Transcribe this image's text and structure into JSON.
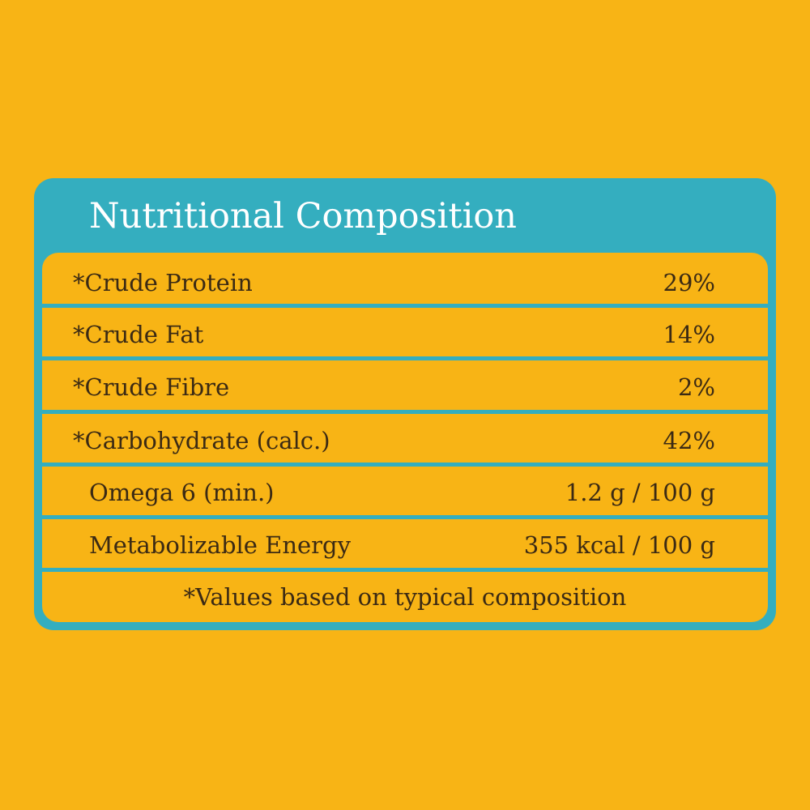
{
  "table": {
    "title": "Nutritional Composition",
    "rows": [
      [
        "*Crude Protein",
        "29%"
      ],
      [
        "*Crude Fat",
        "14%"
      ],
      [
        "*Crude Fibre",
        "2%"
      ],
      [
        "*Carbohydrate (calc.)",
        "42%"
      ],
      [
        "Omega 6 (min.)",
        "1.2 g / 100 g"
      ],
      [
        "Metabolizable Energy",
        "355 kcal / 100 g"
      ]
    ],
    "note": "*Values based on typical composition"
  }
}
